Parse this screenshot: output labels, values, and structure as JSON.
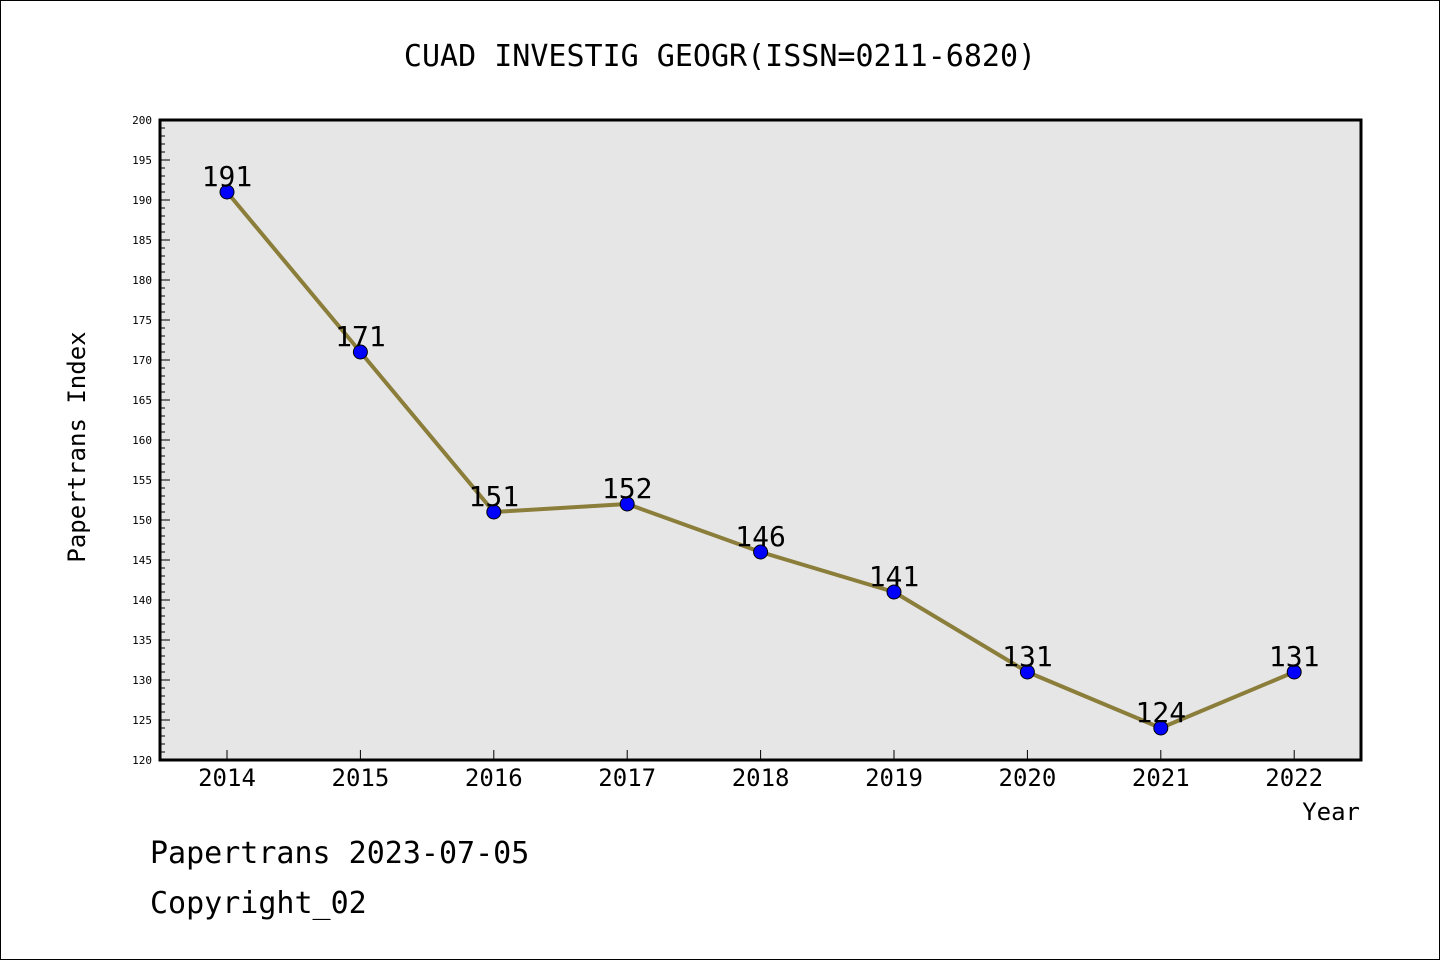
{
  "chart_data": {
    "type": "line",
    "title": "CUAD INVESTIG GEOGR(ISSN=0211-6820)",
    "xlabel": "Year",
    "ylabel": "Papertrans Index",
    "categories": [
      "2014",
      "2015",
      "2016",
      "2017",
      "2018",
      "2019",
      "2020",
      "2021",
      "2022"
    ],
    "series": [
      {
        "values": [
          191,
          171,
          151,
          152,
          146,
          141,
          131,
          124,
          131
        ],
        "color": "#8B7D3A",
        "marker_color": "#0000FF"
      }
    ],
    "data_labels": [
      "191",
      "171",
      "151",
      "152",
      "146",
      "141",
      "131",
      "124",
      "131"
    ],
    "ylim": [
      120,
      200
    ],
    "y_major_step": 5,
    "y_minor_step": 1,
    "y_tick_labels": [
      "120",
      "125",
      "130",
      "135",
      "140",
      "145",
      "150",
      "155",
      "160",
      "165",
      "170",
      "175",
      "180",
      "185",
      "190",
      "195",
      "200"
    ],
    "grid": false,
    "plot_background": "#E6E6E6"
  },
  "footer": {
    "line1": "Papertrans 2023-07-05",
    "line2": "Copyright_02"
  }
}
